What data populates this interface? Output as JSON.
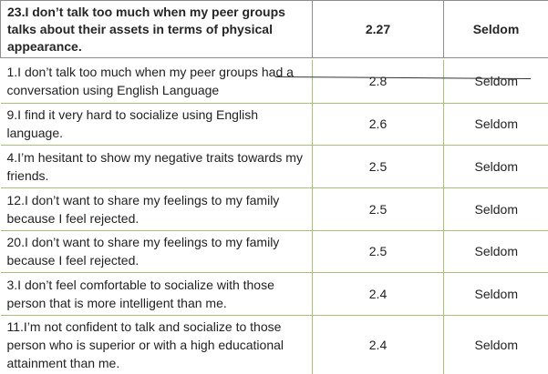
{
  "table": {
    "header_row": {
      "statement": "23.I don’t talk too much when my peer groups talks about their assets in terms of physical appearance.",
      "mean": "2.27",
      "interpretation": "Seldom"
    },
    "rows": [
      {
        "statement": "1.I don’t talk too much when my peer groups had a conversation using English Language",
        "mean": "2.8",
        "interpretation": "Seldom"
      },
      {
        "statement": "9.I find it very hard to socialize using English language.",
        "mean": "2.6",
        "interpretation": "Seldom"
      },
      {
        "statement": "4.I’m hesitant to show my negative traits towards my friends.",
        "mean": "2.5",
        "interpretation": "Seldom"
      },
      {
        "statement": "12.I don’t want to share my feelings to my family because I feel rejected.",
        "mean": "2.5",
        "interpretation": "Seldom"
      },
      {
        "statement": "20.I don’t want to share my feelings to my family because I feel rejected.",
        "mean": "2.5",
        "interpretation": "Seldom"
      },
      {
        "statement": "3.I don’t feel comfortable to socialize with those person that is more intelligent than me.",
        "mean": "2.4",
        "interpretation": "Seldom"
      },
      {
        "statement": "11.I’m not confident to talk and socialize to those person who is superior or with a high educational attainment than me.",
        "mean": "2.4",
        "interpretation": "Seldom"
      }
    ]
  },
  "colors": {
    "header_border": "#8f8f8f",
    "row_border": "#a9c07a",
    "text": "#222222"
  }
}
